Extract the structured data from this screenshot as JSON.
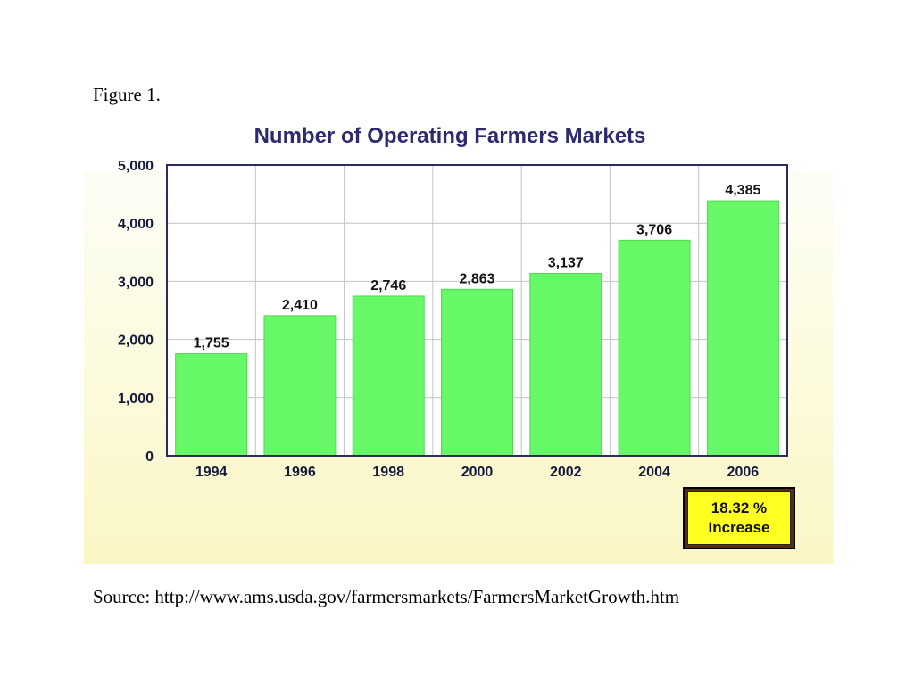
{
  "figure_label": "Figure 1.",
  "source": "Source: http://www.ams.usda.gov/farmersmarkets/FarmersMarketGrowth.htm",
  "increase_badge": {
    "line1": "18.32 %",
    "line2": "Increase"
  },
  "colors": {
    "bar": "#66f866",
    "bar_edge": "#4fd84f",
    "grid": "#c4c4c4",
    "axis_frame": "#2c2a66",
    "title": "#2e2a6e"
  },
  "chart_data": {
    "type": "bar",
    "title": "Number of Operating Farmers Markets",
    "categories": [
      "1994",
      "1996",
      "1998",
      "2000",
      "2002",
      "2004",
      "2006"
    ],
    "values": [
      1755,
      2410,
      2746,
      2863,
      3137,
      3706,
      4385
    ],
    "data_labels": [
      "1,755",
      "2,410",
      "2,746",
      "2,863",
      "3,137",
      "3,706",
      "4,385"
    ],
    "y_ticks": [
      0,
      1000,
      2000,
      3000,
      4000,
      5000
    ],
    "y_tick_labels": [
      "0",
      "1,000",
      "2,000",
      "3,000",
      "4,000",
      "5,000"
    ],
    "ylim": [
      0,
      5000
    ],
    "xlabel": "",
    "ylabel": "",
    "grid": true,
    "legend": false
  }
}
